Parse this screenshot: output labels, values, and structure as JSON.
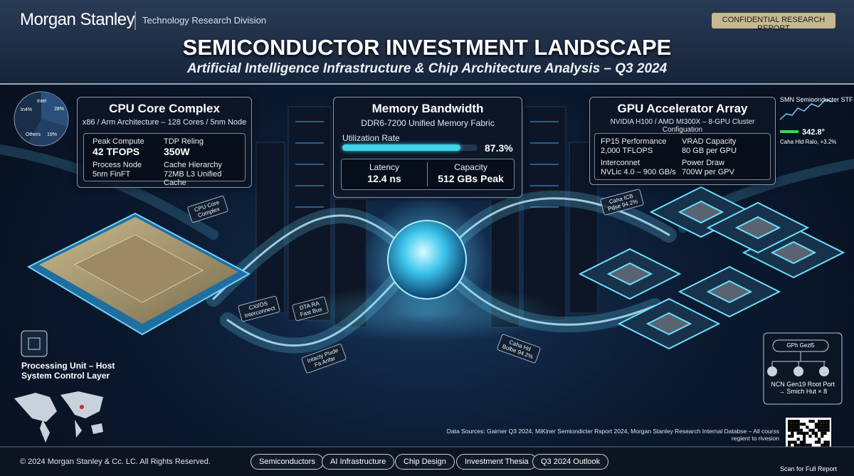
{
  "header": {
    "brand": "Morgan Stanley",
    "division": "Technology Research Division",
    "badge": "CONFIDENTIAL RESEARCH REPORT",
    "title": "SEMICONDUCTOR INVESTMENT LANDSCAPE",
    "subtitle": "Artificial Intelligence Infrastructure & Chip Architecture Analysis – Q3 2024"
  },
  "market_share": {
    "labels": [
      "Intel",
      "In4%",
      "28%",
      "Others",
      "19%"
    ]
  },
  "cpu": {
    "title": "CPU Core Complex",
    "subtitle": "x86 / Arm Architecture – 128 Cores / 5nm Node",
    "stats": [
      {
        "label": "Peak Compute",
        "value": "42 TFOPS"
      },
      {
        "label": "TDP Reling",
        "value": "350W"
      },
      {
        "label": "Process Node",
        "value": "5nm FinFT"
      },
      {
        "label": "Cache Hierarchy",
        "value": "72MB L3 Unified Cache"
      }
    ]
  },
  "memory": {
    "title": "Memory Bandwidth",
    "subtitle": "DDR6-7200 Unified Memory Fabric",
    "utilization": {
      "label": "Utilization Rate",
      "value": 87.3,
      "value_label": "87.3%"
    },
    "stats": [
      {
        "label": "Latency",
        "value": "12.4 ns"
      },
      {
        "label": "Capacity",
        "value": "512 GBs Peak"
      }
    ]
  },
  "gpu": {
    "title": "GPU Accelerator Array",
    "subtitle": "NVIDIA H100 / AMD MI300X – 8-GPU Cluster Configuation",
    "stats": [
      {
        "label": "FP15 Performance",
        "value": "2,000 TFLOPS"
      },
      {
        "label": "VRAD Capacity",
        "value": "80 GB per GPU"
      },
      {
        "label": "Interconnet",
        "value": "NVLic 4.0 – 900 GB/s"
      },
      {
        "label": "Power Draw",
        "value": "700W per GPV"
      }
    ]
  },
  "index": {
    "name": "SMN Semioonducter STF",
    "value": "342.8°",
    "change": "Caha Hld Ralo, +3.2%"
  },
  "callouts": [
    "CPU Core Complex",
    "Caha ICB Pdse 94.2%",
    "CXI/OS Interconnect",
    "DTA RA Fast Bus",
    "Intacty Pixde Fa Anfar",
    "Caha Hd Bulbe 94.2%"
  ],
  "host": {
    "title": "Processing Unit – Host System Control Layer"
  },
  "topology": {
    "title": "GPh Gezl5",
    "caption": "NCN Gen19 Root Port → Smich Hut × 8"
  },
  "sources": "Data Sources: Gairner Q3 2024, MiKiner Semiondicter Rsport 2024, Morgan Stanley Research Internal Databse – All courss regient to rivesion",
  "qr": "Scan for Full Report",
  "footer": {
    "copyright": "© 2024 Morgan Stanley & Cc. LC. All Rights Reserved.",
    "tags": [
      "Semiconductors",
      "AI Infrastructure",
      "Chip Design",
      "Investment Thesia",
      "Q3 2024 Outlook"
    ]
  }
}
